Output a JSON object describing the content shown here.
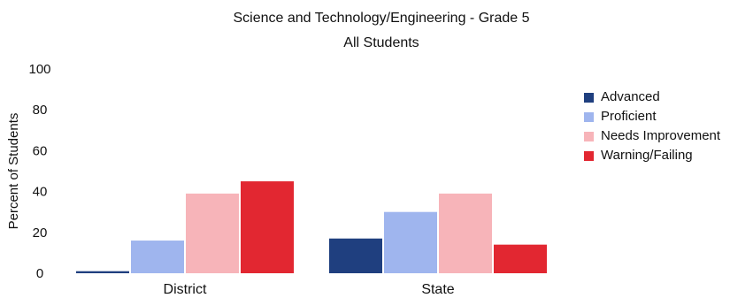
{
  "chart_data": {
    "type": "bar",
    "title": "Science and Technology/Engineering - Grade 5",
    "subtitle": "All Students",
    "xlabel": "",
    "ylabel": "Percent of Students",
    "ylim": [
      0,
      100
    ],
    "yticks": [
      0,
      20,
      40,
      60,
      80,
      100
    ],
    "grid": false,
    "legend_position": "right",
    "categories": [
      "District",
      "State"
    ],
    "series": [
      {
        "name": "Advanced",
        "color": "#1f3f7f",
        "values": [
          1,
          17
        ]
      },
      {
        "name": "Proficient",
        "color": "#9fb5ee",
        "values": [
          16,
          30
        ]
      },
      {
        "name": "Needs Improvement",
        "color": "#f7b4b9",
        "values": [
          39,
          39
        ]
      },
      {
        "name": "Warning/Failing",
        "color": "#e22731",
        "values": [
          45,
          14
        ]
      }
    ]
  }
}
